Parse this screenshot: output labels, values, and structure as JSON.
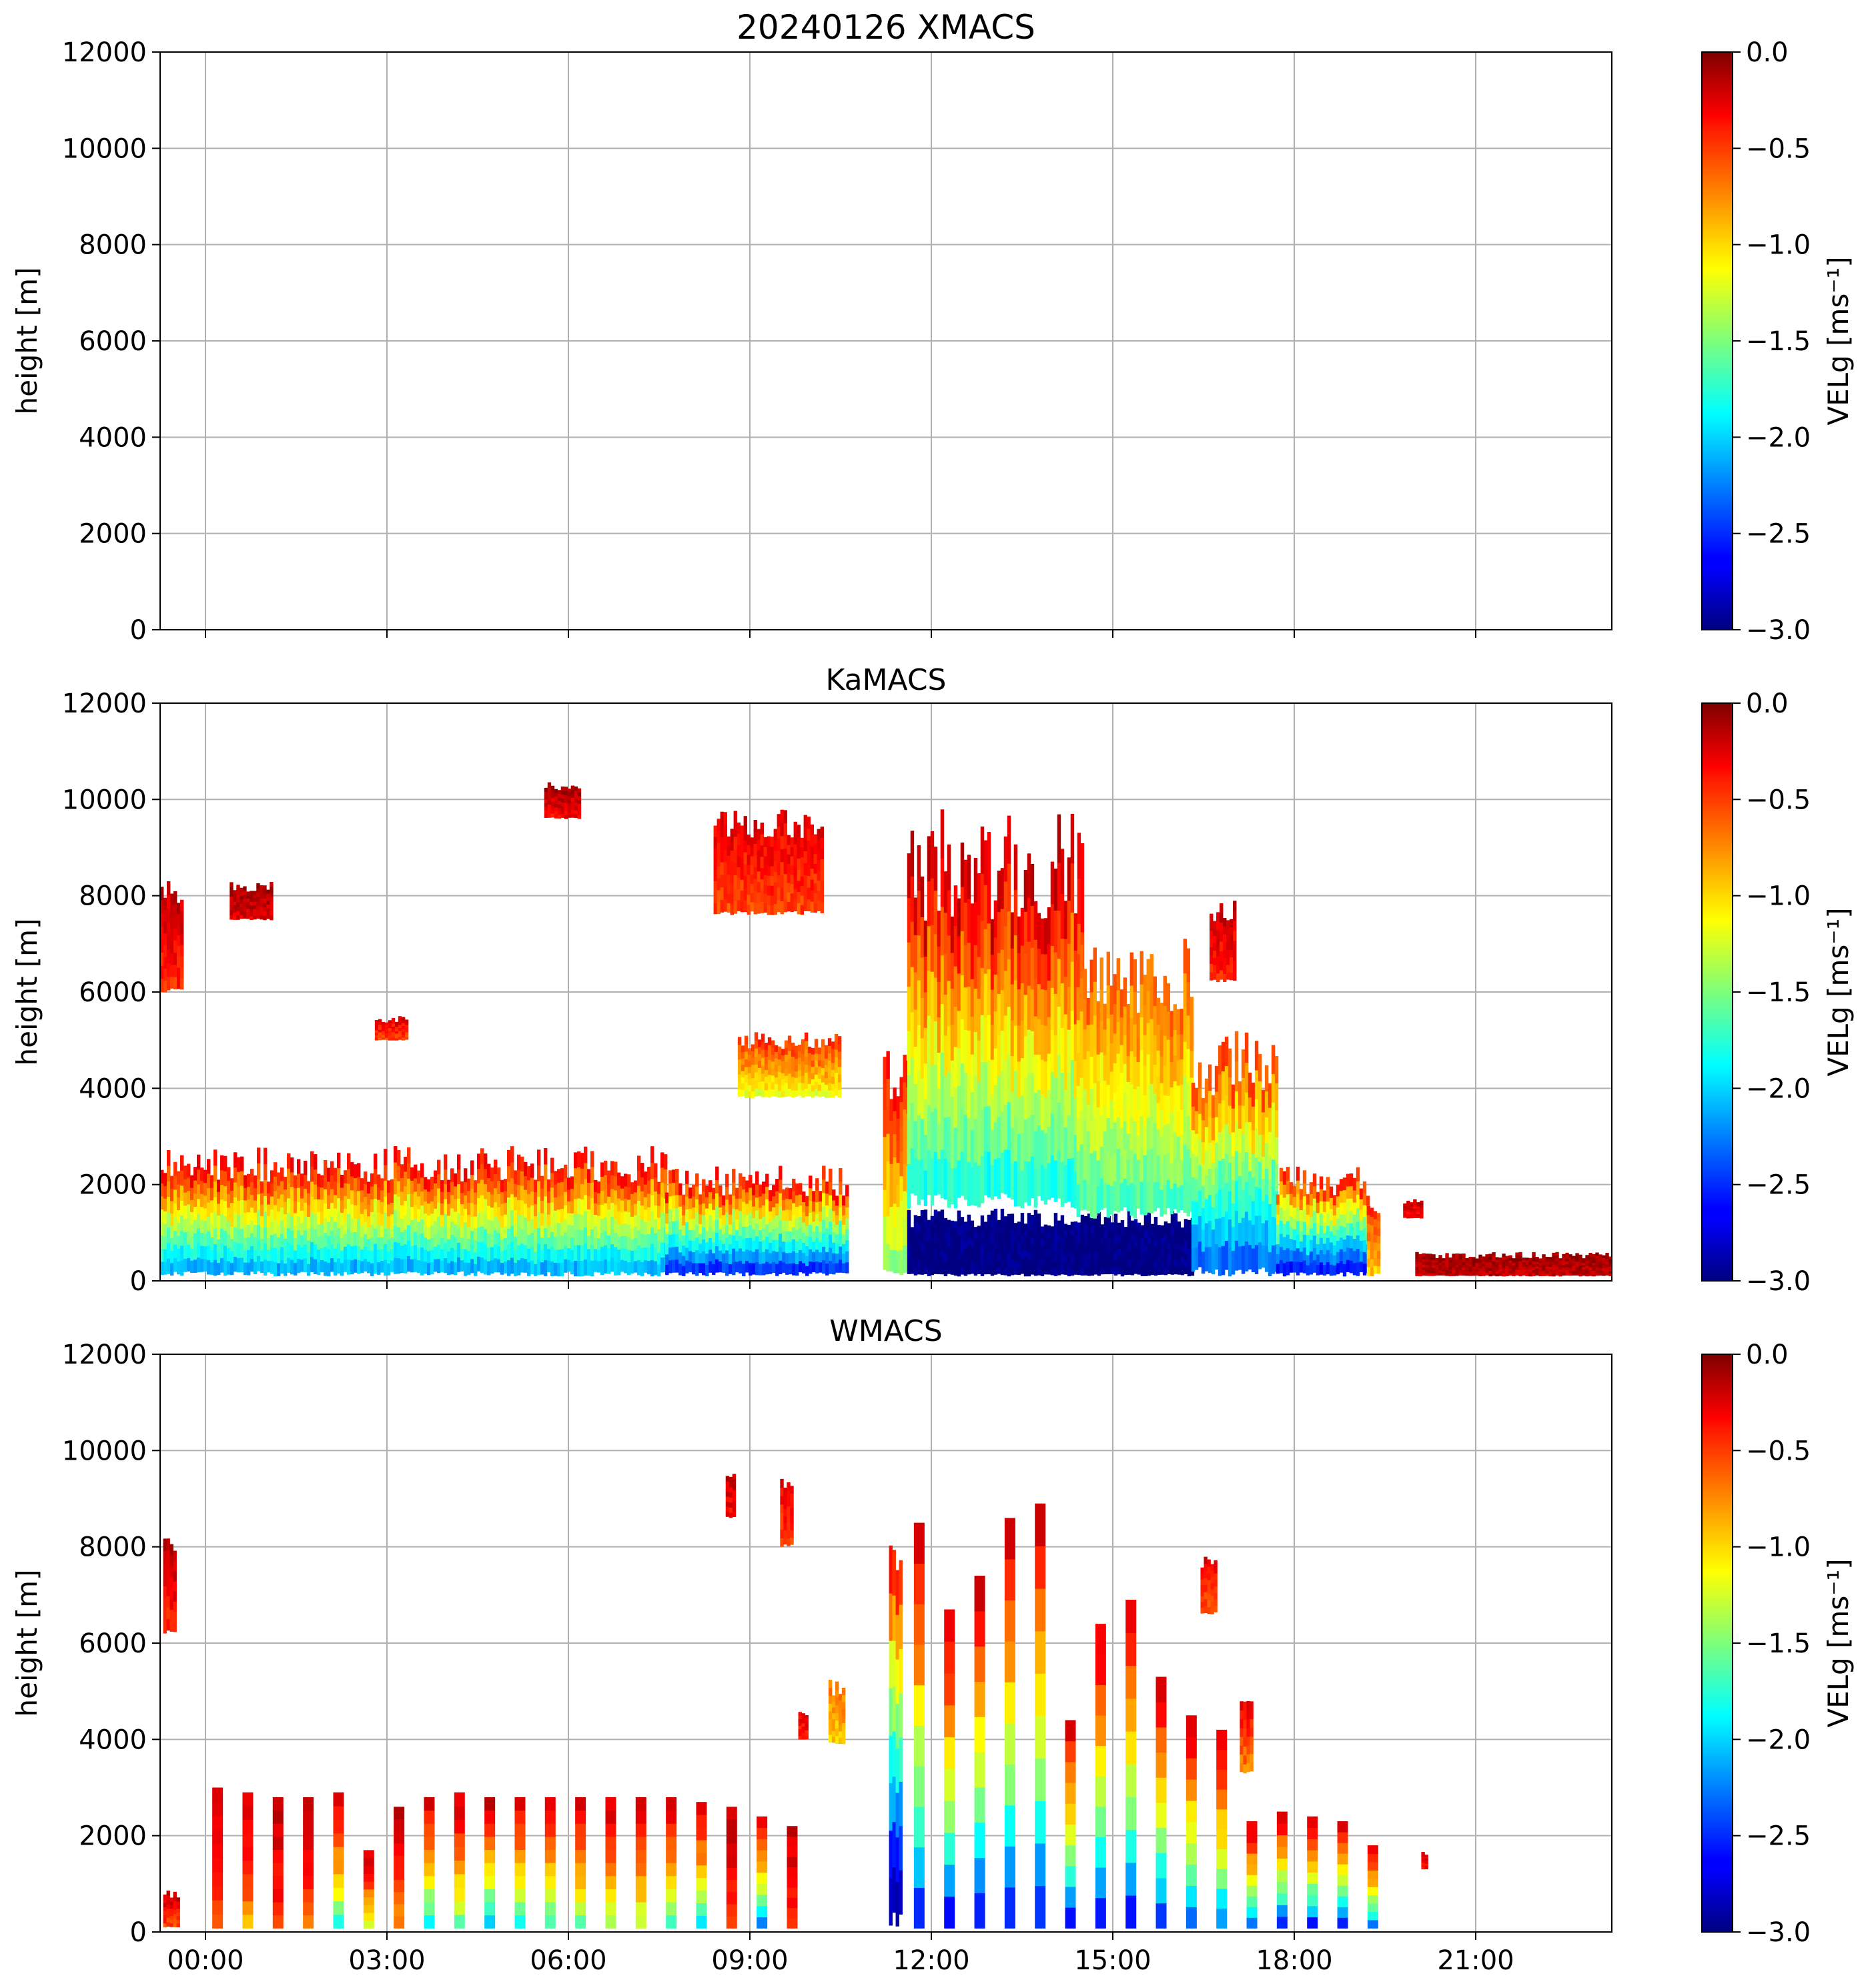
{
  "figure": {
    "colormap": "jet",
    "axis_color": "#000000",
    "grid_color": "#b0b0b0"
  },
  "chart_data": [
    {
      "type": "heatmap",
      "title": "20240126 XMACS",
      "ylabel": "height [m]",
      "ylim": [
        0,
        12000
      ],
      "yticks": [
        "0",
        "2000",
        "4000",
        "6000",
        "8000",
        "10000",
        "12000"
      ],
      "xlim_hours": [
        -0.75,
        23.25
      ],
      "xticks_hours": [
        0,
        3,
        6,
        9,
        12,
        15,
        18,
        21
      ],
      "xticklabels": [],
      "grid": true,
      "colorbar": {
        "label": "VELg [ms⁻¹]",
        "range": [
          -3.0,
          0.0
        ],
        "ticks": [
          "0.0",
          "−0.5",
          "−1.0",
          "−1.5",
          "−2.0",
          "−2.5",
          "−3.0"
        ]
      },
      "cloud_regions": []
    },
    {
      "type": "heatmap",
      "title": "KaMACS",
      "ylabel": "height [m]",
      "ylim": [
        0,
        12000
      ],
      "yticks": [
        "0",
        "2000",
        "4000",
        "6000",
        "8000",
        "10000",
        "12000"
      ],
      "xlim_hours": [
        -0.75,
        23.25
      ],
      "xticks_hours": [
        0,
        3,
        6,
        9,
        12,
        15,
        18,
        21
      ],
      "xticklabels": [],
      "grid": true,
      "colorbar": {
        "label": "VELg [ms⁻¹]",
        "range": [
          -3.0,
          0.0
        ],
        "ticks": [
          "0.0",
          "−0.5",
          "−1.0",
          "−1.5",
          "−2.0",
          "−2.5",
          "−3.0"
        ]
      },
      "cloud_regions": [
        {
          "t0": -0.75,
          "t1": 7.6,
          "h0": 100,
          "h1": 2800,
          "v_top": -0.3,
          "v_bot": -2.2
        },
        {
          "t0": 7.6,
          "t1": 10.6,
          "h0": 100,
          "h1": 2400,
          "v_top": -0.3,
          "v_bot": -2.6
        },
        {
          "t0": -0.75,
          "t1": -0.4,
          "h0": 6000,
          "h1": 8300,
          "v_top": -0.2,
          "v_bot": -0.5
        },
        {
          "t0": 0.4,
          "t1": 1.1,
          "h0": 7500,
          "h1": 8300,
          "v_top": -0.1,
          "v_bot": -0.3
        },
        {
          "t0": 2.8,
          "t1": 3.3,
          "h0": 5000,
          "h1": 5500,
          "v_top": -0.3,
          "v_bot": -0.6
        },
        {
          "t0": 5.6,
          "t1": 6.2,
          "h0": 9600,
          "h1": 10400,
          "v_top": -0.1,
          "v_bot": -0.4
        },
        {
          "t0": 8.4,
          "t1": 10.2,
          "h0": 7600,
          "h1": 9800,
          "v_top": -0.3,
          "v_bot": -0.6
        },
        {
          "t0": 8.8,
          "t1": 10.5,
          "h0": 3800,
          "h1": 5200,
          "v_top": -0.5,
          "v_bot": -1.2
        },
        {
          "t0": 11.2,
          "t1": 11.6,
          "h0": 100,
          "h1": 5000,
          "v_top": -0.3,
          "v_bot": -1.5
        },
        {
          "t0": 11.6,
          "t1": 14.5,
          "h0": 1500,
          "h1": 9800,
          "v_top": -0.15,
          "v_bot": -1.9
        },
        {
          "t0": 11.6,
          "t1": 16.3,
          "h0": 100,
          "h1": 1500,
          "v_top": -3.0,
          "v_bot": -3.0
        },
        {
          "t0": 14.4,
          "t1": 16.3,
          "h0": 1300,
          "h1": 7200,
          "v_top": -0.6,
          "v_bot": -1.7
        },
        {
          "t0": 16.3,
          "t1": 17.7,
          "h0": 100,
          "h1": 5200,
          "v_top": -0.5,
          "v_bot": -2.4
        },
        {
          "t0": 16.6,
          "t1": 17.0,
          "h0": 6200,
          "h1": 7900,
          "v_top": -0.2,
          "v_bot": -0.5
        },
        {
          "t0": 17.7,
          "t1": 19.2,
          "h0": 100,
          "h1": 2400,
          "v_top": -0.4,
          "v_bot": -2.7
        },
        {
          "t0": 19.2,
          "t1": 19.4,
          "h0": 100,
          "h1": 1600,
          "v_top": -0.5,
          "v_bot": -1.0
        },
        {
          "t0": 19.8,
          "t1": 20.1,
          "h0": 1300,
          "h1": 1700,
          "v_top": -0.2,
          "v_bot": -0.4
        },
        {
          "t0": 20.0,
          "t1": 23.2,
          "h0": 100,
          "h1": 600,
          "v_top": -0.1,
          "v_bot": -0.2
        }
      ]
    },
    {
      "type": "heatmap",
      "title": "WMACS",
      "ylabel": "height [m]",
      "ylim": [
        0,
        12000
      ],
      "yticks": [
        "0",
        "2000",
        "4000",
        "6000",
        "8000",
        "10000",
        "12000"
      ],
      "xlim_hours": [
        -0.75,
        23.25
      ],
      "xticks_hours": [
        0,
        3,
        6,
        9,
        12,
        15,
        18,
        21
      ],
      "xticklabels": [
        "00:00",
        "03:00",
        "06:00",
        "09:00",
        "12:00",
        "15:00",
        "18:00",
        "21:00"
      ],
      "grid": true,
      "colorbar": {
        "label": "VELg [ms⁻¹]",
        "range": [
          -3.0,
          0.0
        ],
        "ticks": [
          "0.0",
          "−0.5",
          "−1.0",
          "−1.5",
          "−2.0",
          "−2.5",
          "−3.0"
        ]
      },
      "cloud_regions": [
        {
          "t0": -0.7,
          "t1": -0.45,
          "h0": 100,
          "h1": 900,
          "v_top": -0.2,
          "v_bot": -0.6
        },
        {
          "t0": -0.7,
          "t1": -0.5,
          "h0": 6200,
          "h1": 8400,
          "v_top": -0.2,
          "v_bot": -0.5
        },
        {
          "t0": 8.6,
          "t1": 8.75,
          "h0": 8600,
          "h1": 9600,
          "v_top": -0.2,
          "v_bot": -0.4
        },
        {
          "t0": 9.5,
          "t1": 9.7,
          "h0": 8000,
          "h1": 9500,
          "v_top": -0.3,
          "v_bot": -0.6
        },
        {
          "t0": 9.8,
          "t1": 9.95,
          "h0": 4000,
          "h1": 4600,
          "v_top": -0.3,
          "v_bot": -0.5
        },
        {
          "t0": 10.3,
          "t1": 10.55,
          "h0": 3900,
          "h1": 5300,
          "v_top": -0.7,
          "v_bot": -1.0
        },
        {
          "t0": 11.3,
          "t1": 11.5,
          "h0": 100,
          "h1": 8100,
          "v_top": -0.3,
          "v_bot": -3.0
        },
        {
          "t0": 16.45,
          "t1": 16.7,
          "h0": 6600,
          "h1": 7900,
          "v_top": -0.3,
          "v_bot": -0.6
        },
        {
          "t0": 17.1,
          "t1": 17.3,
          "h0": 3300,
          "h1": 4900,
          "v_top": -0.3,
          "v_bot": -0.8
        },
        {
          "t0": 20.1,
          "t1": 20.2,
          "h0": 1300,
          "h1": 1700,
          "v_top": -0.2,
          "v_bot": -0.4
        }
      ],
      "scan_columns": [
        {
          "t": 0.2,
          "h1": 3000,
          "v_bot": -0.8
        },
        {
          "t": 0.7,
          "h1": 2900,
          "v_bot": -1.0
        },
        {
          "t": 1.2,
          "h1": 2800,
          "v_bot": -0.6
        },
        {
          "t": 1.7,
          "h1": 2800,
          "v_bot": -0.8
        },
        {
          "t": 2.2,
          "h1": 2900,
          "v_bot": -2.0
        },
        {
          "t": 2.7,
          "h1": 1700,
          "v_bot": -1.5
        },
        {
          "t": 3.2,
          "h1": 2600,
          "v_bot": -0.9
        },
        {
          "t": 3.7,
          "h1": 2800,
          "v_bot": -2.3
        },
        {
          "t": 4.2,
          "h1": 2900,
          "v_bot": -1.8
        },
        {
          "t": 4.7,
          "h1": 2800,
          "v_bot": -2.4
        },
        {
          "t": 5.2,
          "h1": 2800,
          "v_bot": -2.2
        },
        {
          "t": 5.7,
          "h1": 2800,
          "v_bot": -2.0
        },
        {
          "t": 6.2,
          "h1": 2800,
          "v_bot": -1.8
        },
        {
          "t": 6.7,
          "h1": 2800,
          "v_bot": -1.7
        },
        {
          "t": 7.2,
          "h1": 2800,
          "v_bot": -1.6
        },
        {
          "t": 7.7,
          "h1": 2800,
          "v_bot": -1.9
        },
        {
          "t": 8.2,
          "h1": 2700,
          "v_bot": -2.2
        },
        {
          "t": 8.7,
          "h1": 2600,
          "v_bot": -0.6
        },
        {
          "t": 9.2,
          "h1": 2400,
          "v_bot": -2.6
        },
        {
          "t": 9.7,
          "h1": 2200,
          "v_bot": -0.6
        },
        {
          "t": 11.8,
          "h1": 8500,
          "v_bot": -3.0
        },
        {
          "t": 12.3,
          "h1": 6700,
          "v_bot": -3.0
        },
        {
          "t": 12.8,
          "h1": 7400,
          "v_bot": -3.0
        },
        {
          "t": 13.3,
          "h1": 8600,
          "v_bot": -3.0
        },
        {
          "t": 13.8,
          "h1": 8900,
          "v_bot": -3.0
        },
        {
          "t": 14.3,
          "h1": 4400,
          "v_bot": -3.0
        },
        {
          "t": 14.8,
          "h1": 6400,
          "v_bot": -3.0
        },
        {
          "t": 15.3,
          "h1": 6900,
          "v_bot": -3.0
        },
        {
          "t": 15.8,
          "h1": 5300,
          "v_bot": -3.0
        },
        {
          "t": 16.3,
          "h1": 4500,
          "v_bot": -2.8
        },
        {
          "t": 16.8,
          "h1": 4200,
          "v_bot": -2.6
        },
        {
          "t": 17.3,
          "h1": 2300,
          "v_bot": -2.7
        },
        {
          "t": 17.8,
          "h1": 2500,
          "v_bot": -3.0
        },
        {
          "t": 18.3,
          "h1": 2400,
          "v_bot": -3.0
        },
        {
          "t": 18.8,
          "h1": 2300,
          "v_bot": -3.0
        },
        {
          "t": 19.3,
          "h1": 1800,
          "v_bot": -2.6
        }
      ]
    }
  ]
}
